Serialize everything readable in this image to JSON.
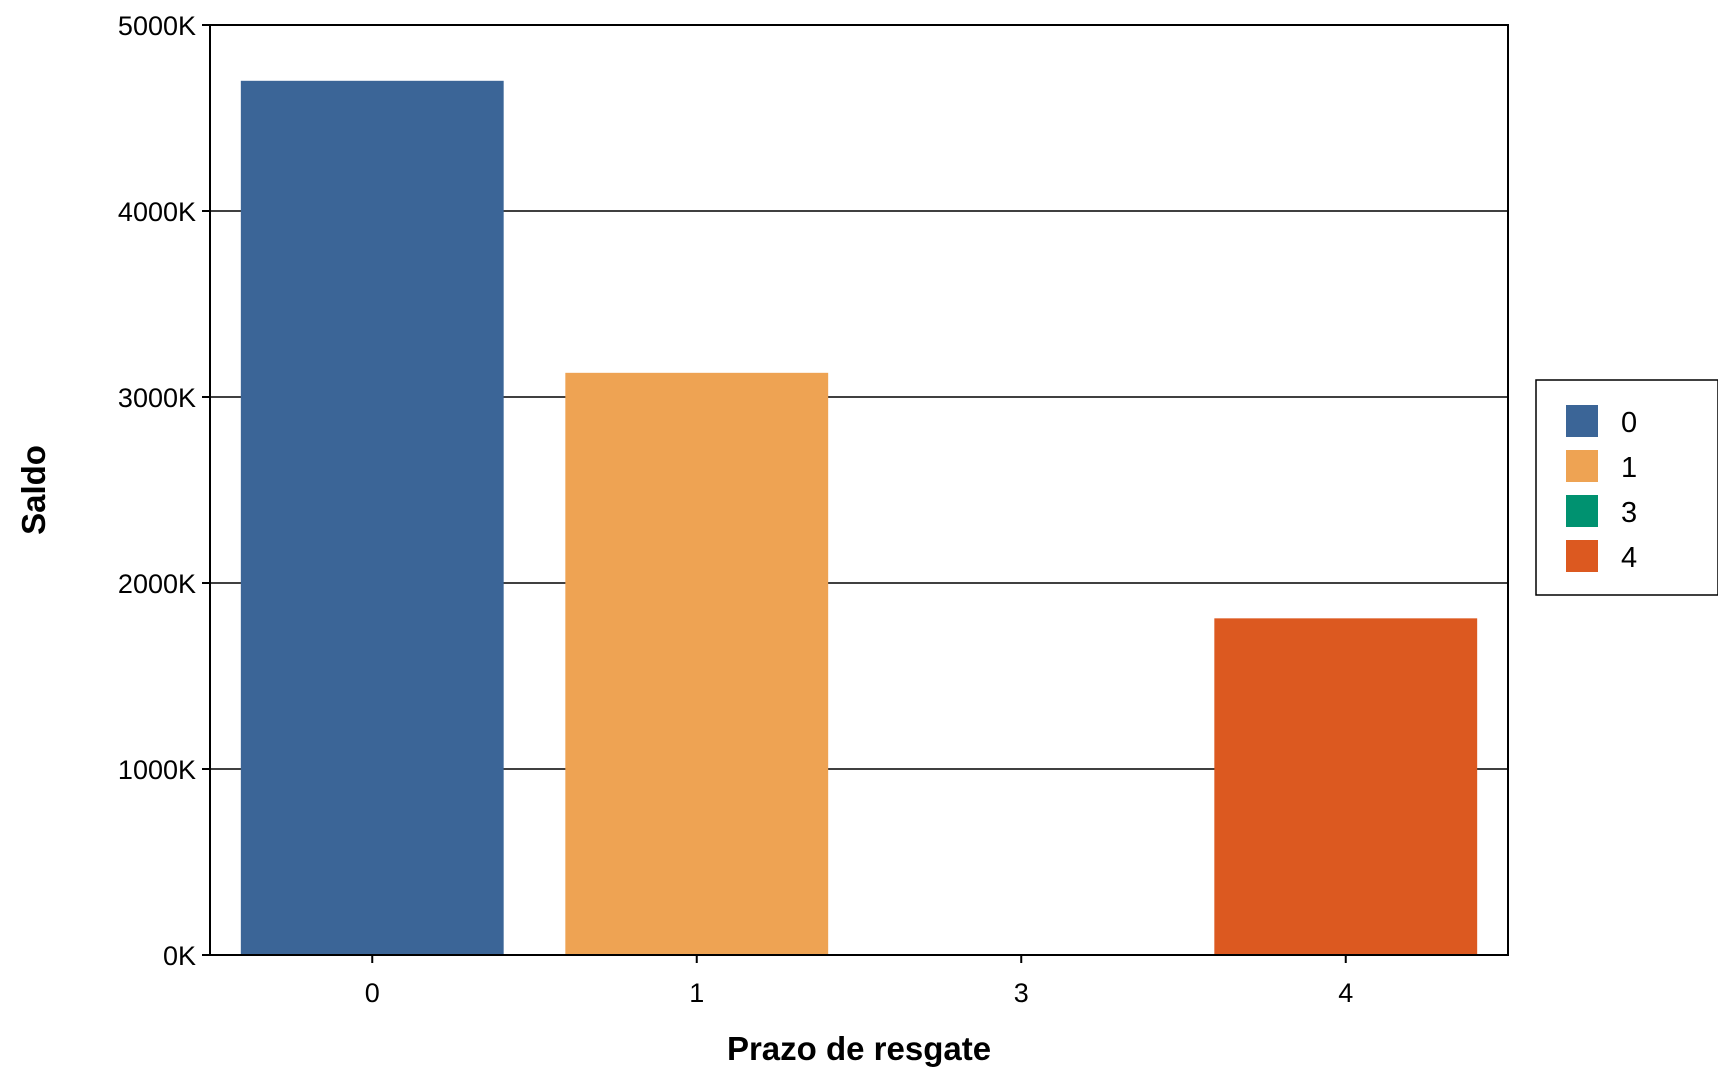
{
  "chart_data": {
    "type": "bar",
    "categories": [
      "0",
      "1",
      "3",
      "4"
    ],
    "values": [
      4700,
      3130,
      0,
      1810
    ],
    "value_unit_suffix": "K",
    "xlabel": "Prazo de resgate",
    "ylabel": "Saldo",
    "ylim": [
      0,
      5000
    ],
    "yticks": [
      "0K",
      "1000K",
      "2000K",
      "3000K",
      "4000K",
      "5000K"
    ],
    "grid": "horizontal",
    "legend_placement": "right",
    "legend": [
      "0",
      "1",
      "3",
      "4"
    ],
    "colors": [
      "#3b6597",
      "#eea353",
      "#009270",
      "#dc5920"
    ]
  }
}
